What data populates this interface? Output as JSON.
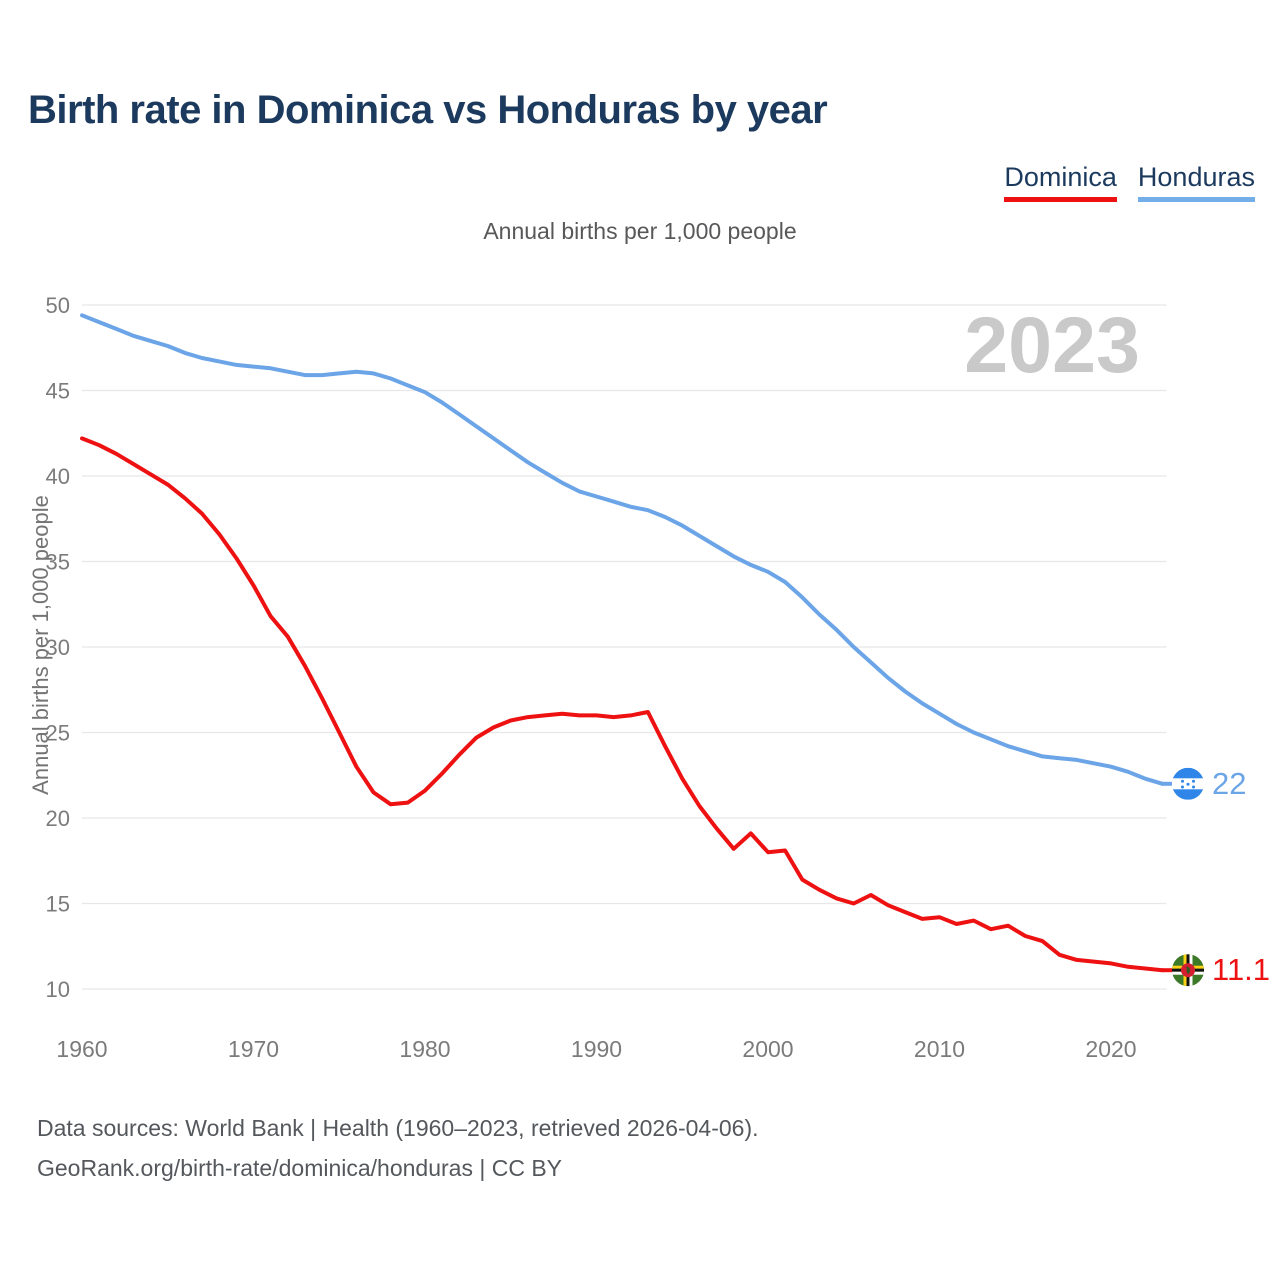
{
  "header": {
    "title": "Birth rate in Dominica vs Honduras by year"
  },
  "legend": {
    "items": [
      {
        "label": "Dominica",
        "color": "#EE1111"
      },
      {
        "label": "Honduras",
        "color": "#74AEE8"
      }
    ]
  },
  "subtitle": "Annual births per 1,000 people",
  "watermark": "2023",
  "axes": {
    "y_title": "Annual births per 1,000 people",
    "y_ticks": [
      10,
      15,
      20,
      25,
      30,
      35,
      40,
      45,
      50
    ],
    "x_ticks": [
      1960,
      1970,
      1980,
      1990,
      2000,
      2010,
      2020
    ]
  },
  "chart_data": {
    "type": "line",
    "title": "Birth rate in Dominica vs Honduras by year",
    "ylabel": "Annual births per 1,000 people",
    "xlabel": "",
    "ylim": [
      10,
      50
    ],
    "xlim": [
      1960,
      2023
    ],
    "grid": "horizontal",
    "legend_position": "top-right",
    "x": [
      1960,
      1961,
      1962,
      1963,
      1964,
      1965,
      1966,
      1967,
      1968,
      1969,
      1970,
      1971,
      1972,
      1973,
      1974,
      1975,
      1976,
      1977,
      1978,
      1979,
      1980,
      1981,
      1982,
      1983,
      1984,
      1985,
      1986,
      1987,
      1988,
      1989,
      1990,
      1991,
      1992,
      1993,
      1994,
      1995,
      1996,
      1997,
      1998,
      1999,
      2000,
      2001,
      2002,
      2003,
      2004,
      2005,
      2006,
      2007,
      2008,
      2009,
      2010,
      2011,
      2012,
      2013,
      2014,
      2015,
      2016,
      2017,
      2018,
      2019,
      2020,
      2021,
      2022,
      2023
    ],
    "series": [
      {
        "name": "Dominica",
        "color": "#EE1111",
        "values": [
          42.2,
          41.8,
          41.3,
          40.7,
          40.1,
          39.5,
          38.7,
          37.8,
          36.6,
          35.2,
          33.6,
          31.8,
          30.6,
          28.9,
          27.0,
          25.0,
          23.0,
          21.5,
          20.8,
          20.9,
          21.6,
          22.6,
          23.7,
          24.7,
          25.3,
          25.7,
          25.9,
          26.0,
          26.1,
          26.0,
          26.0,
          25.9,
          26.0,
          26.2,
          24.2,
          22.3,
          20.7,
          19.4,
          18.2,
          19.1,
          18.0,
          18.1,
          16.4,
          15.8,
          15.3,
          15.0,
          15.5,
          14.9,
          14.5,
          14.1,
          14.2,
          13.8,
          14.0,
          13.5,
          13.7,
          13.1,
          12.8,
          12.0,
          11.7,
          11.6,
          11.5,
          11.3,
          11.2,
          11.1
        ],
        "end_label": "11.1",
        "flag": "dominica"
      },
      {
        "name": "Honduras",
        "color": "#6BA5E7",
        "values": [
          49.4,
          49.0,
          48.6,
          48.2,
          47.9,
          47.6,
          47.2,
          46.9,
          46.7,
          46.5,
          46.4,
          46.3,
          46.1,
          45.9,
          45.9,
          46.0,
          46.1,
          46.0,
          45.7,
          45.3,
          44.9,
          44.3,
          43.6,
          42.9,
          42.2,
          41.5,
          40.8,
          40.2,
          39.6,
          39.1,
          38.8,
          38.5,
          38.2,
          38.0,
          37.6,
          37.1,
          36.5,
          35.9,
          35.3,
          34.8,
          34.4,
          33.8,
          32.9,
          31.9,
          31.0,
          30.0,
          29.1,
          28.2,
          27.4,
          26.7,
          26.1,
          25.5,
          25.0,
          24.6,
          24.2,
          23.9,
          23.6,
          23.5,
          23.4,
          23.2,
          23.0,
          22.7,
          22.3,
          22.0
        ],
        "end_label": "22",
        "flag": "honduras"
      }
    ]
  },
  "footer": {
    "line1": "Data sources: World Bank | Health (1960–2023, retrieved 2026-04-06).",
    "line2": "GeoRank.org/birth-rate/dominica/honduras | CC BY"
  },
  "colors": {
    "title": "#1C3A5E",
    "subtitle": "#58585A",
    "axis_text": "#7B7B7B",
    "grid": "#E7E7E7",
    "watermark": "#C9C9C9",
    "footer": "#54585C",
    "honduras_flag_blue": "#2F86E8",
    "dominica_flag_green": "#3D7A27",
    "dominica_flag_red": "#D41F30"
  }
}
